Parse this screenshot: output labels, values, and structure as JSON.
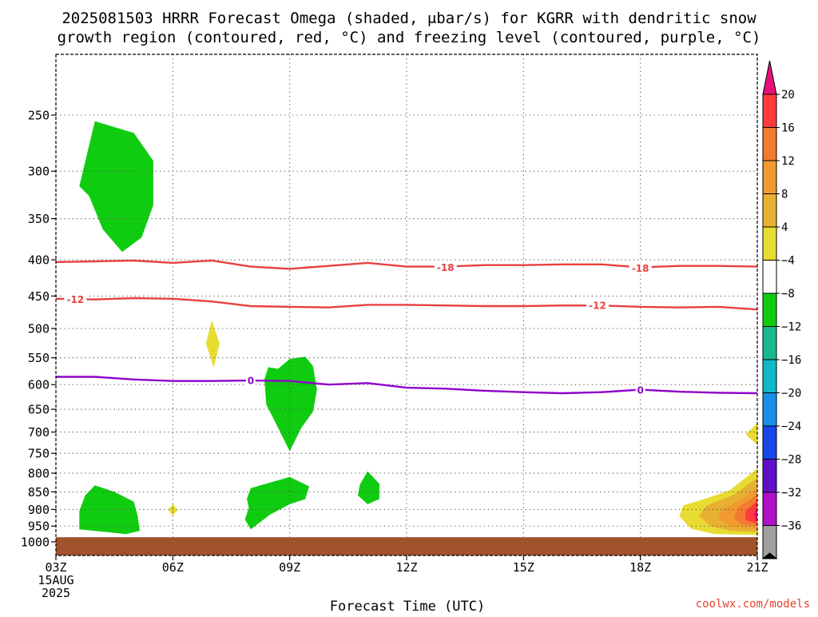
{
  "chart_data": {
    "type": "heatmap",
    "title_line1": "2025081503 HRRR Forecast Omega (shaded, μbar/s) for KGRR with dendritic snow",
    "title_line2": "growth region (contoured, red, °C) and freezing level (contoured, purple, °C)",
    "xlabel": "Forecast Time (UTC)",
    "credit": "coolwx.com/models",
    "x_start_label": [
      "03Z",
      "15AUG",
      "2025"
    ],
    "x_range_hours": [
      3,
      21
    ],
    "x_ticks": [
      {
        "hour": 3,
        "label": "03Z"
      },
      {
        "hour": 6,
        "label": "06Z"
      },
      {
        "hour": 9,
        "label": "09Z"
      },
      {
        "hour": 12,
        "label": "12Z"
      },
      {
        "hour": 15,
        "label": "15Z"
      },
      {
        "hour": 18,
        "label": "18Z"
      },
      {
        "hour": 21,
        "label": "21Z"
      }
    ],
    "y_axis": "pressure (hPa), inverted",
    "y_ticks": [
      250,
      300,
      350,
      400,
      450,
      500,
      550,
      600,
      650,
      700,
      750,
      800,
      850,
      900,
      950,
      1000
    ],
    "grid": true,
    "ground_pressure": 985,
    "colorbar": {
      "labels": [
        "20",
        "16",
        "12",
        "8",
        "4",
        "−4",
        "−8",
        "−12",
        "−16",
        "−20",
        "−24",
        "−28",
        "−32",
        "−36"
      ],
      "colors": [
        "#ff3b3b",
        "#f47a30",
        "#f09a30",
        "#e8b030",
        "#e8dc32",
        "#ffffff",
        "#10cc10",
        "#18b890",
        "#10b8c8",
        "#1890e8",
        "#1848e8",
        "#6010c8",
        "#b010c8",
        "#a0a0a0"
      ],
      "top_color": "#e8107a",
      "bottom_color": "#000000"
    },
    "omega_regions": [
      {
        "id": "green-300",
        "color": "#10cc10",
        "points": [
          [
            4.0,
            255
          ],
          [
            5.0,
            265
          ],
          [
            5.5,
            290
          ],
          [
            5.5,
            335
          ],
          [
            5.2,
            372
          ],
          [
            4.7,
            390
          ],
          [
            4.2,
            362
          ],
          [
            3.85,
            325
          ],
          [
            3.6,
            315
          ]
        ]
      },
      {
        "id": "green-600",
        "color": "#10cc10",
        "points": [
          [
            8.7,
            570
          ],
          [
            9.0,
            552
          ],
          [
            9.4,
            548
          ],
          [
            9.6,
            565
          ],
          [
            9.7,
            610
          ],
          [
            9.6,
            655
          ],
          [
            9.3,
            690
          ],
          [
            9.0,
            745
          ],
          [
            8.7,
            690
          ],
          [
            8.4,
            640
          ],
          [
            8.35,
            590
          ],
          [
            8.45,
            567
          ]
        ]
      },
      {
        "id": "green-870",
        "color": "#10cc10",
        "points": [
          [
            8.0,
            840
          ],
          [
            9.0,
            810
          ],
          [
            9.5,
            835
          ],
          [
            9.4,
            870
          ],
          [
            9.0,
            885
          ],
          [
            8.5,
            915
          ],
          [
            8.0,
            960
          ],
          [
            7.85,
            930
          ],
          [
            7.95,
            895
          ],
          [
            7.9,
            870
          ]
        ]
      },
      {
        "id": "green-850-11z",
        "color": "#10cc10",
        "points": [
          [
            11.0,
            795
          ],
          [
            11.3,
            828
          ],
          [
            11.3,
            870
          ],
          [
            11.0,
            885
          ],
          [
            10.75,
            860
          ],
          [
            10.8,
            830
          ]
        ]
      },
      {
        "id": "green-900-04z",
        "color": "#10cc10",
        "points": [
          [
            4.0,
            832
          ],
          [
            4.5,
            850
          ],
          [
            5.0,
            878
          ],
          [
            5.1,
            920
          ],
          [
            5.15,
            965
          ],
          [
            4.8,
            975
          ],
          [
            3.6,
            960
          ],
          [
            3.6,
            905
          ],
          [
            3.75,
            860
          ]
        ]
      },
      {
        "id": "yellow-520",
        "color": "#e8dc32",
        "points": [
          [
            7.0,
            487
          ],
          [
            7.2,
            525
          ],
          [
            7.05,
            568
          ],
          [
            6.85,
            525
          ]
        ]
      },
      {
        "id": "yellow-900-dot",
        "color": "#e8dc32",
        "points": [
          [
            6.0,
            883
          ],
          [
            6.12,
            902
          ],
          [
            6.0,
            918
          ],
          [
            5.88,
            902
          ]
        ]
      },
      {
        "id": "yellow-700-edge",
        "color": "#e8dc32",
        "points": [
          [
            21.0,
            680
          ],
          [
            21.0,
            730
          ],
          [
            20.7,
            705
          ]
        ]
      },
      {
        "id": "omega-4",
        "color": "#e8dc32",
        "points": [
          [
            21.0,
            788
          ],
          [
            20.3,
            845
          ],
          [
            19.7,
            868
          ],
          [
            19.1,
            888
          ],
          [
            19.0,
            920
          ],
          [
            19.3,
            958
          ],
          [
            19.9,
            975
          ],
          [
            21.0,
            978
          ]
        ]
      },
      {
        "id": "omega-8",
        "color": "#e8b030",
        "points": [
          [
            21.0,
            812
          ],
          [
            20.4,
            858
          ],
          [
            19.7,
            888
          ],
          [
            19.5,
            920
          ],
          [
            19.8,
            950
          ],
          [
            20.3,
            965
          ],
          [
            21.0,
            968
          ]
        ]
      },
      {
        "id": "omega-12",
        "color": "#f09a30",
        "points": [
          [
            21.0,
            840
          ],
          [
            20.6,
            870
          ],
          [
            20.1,
            900
          ],
          [
            20.0,
            925
          ],
          [
            20.3,
            950
          ],
          [
            21.0,
            958
          ]
        ]
      },
      {
        "id": "omega-16",
        "color": "#f47a30",
        "points": [
          [
            21.0,
            858
          ],
          [
            20.5,
            895
          ],
          [
            20.4,
            925
          ],
          [
            20.6,
            945
          ],
          [
            21.0,
            950
          ]
        ]
      },
      {
        "id": "omega-20",
        "color": "#ff3b3b",
        "points": [
          [
            21.0,
            875
          ],
          [
            20.7,
            905
          ],
          [
            20.7,
            932
          ],
          [
            21.0,
            942
          ]
        ]
      },
      {
        "id": "omega-max",
        "color": "#e8107a",
        "points": [
          [
            21.0,
            895
          ],
          [
            20.9,
            915
          ],
          [
            21.0,
            935
          ]
        ]
      }
    ],
    "contours": [
      {
        "name": "-18",
        "color": "#e84040",
        "label": "-18",
        "points": [
          [
            3.0,
            403
          ],
          [
            4.0,
            402
          ],
          [
            5.0,
            401
          ],
          [
            6.0,
            404
          ],
          [
            7.0,
            401
          ],
          [
            8.0,
            409
          ],
          [
            9.0,
            412
          ],
          [
            10.0,
            408
          ],
          [
            11.0,
            404
          ],
          [
            12.0,
            409
          ],
          [
            13.0,
            409
          ],
          [
            14.0,
            407
          ],
          [
            15.0,
            407
          ],
          [
            16.0,
            406
          ],
          [
            17.0,
            406
          ],
          [
            18.0,
            410
          ],
          [
            19.0,
            408
          ],
          [
            20.0,
            408
          ],
          [
            21.0,
            409
          ]
        ],
        "label_at": [
          [
            13.0,
            410
          ],
          [
            18.0,
            411
          ]
        ]
      },
      {
        "name": "-12",
        "color": "#e84040",
        "label": "-12",
        "points": [
          [
            3.0,
            454
          ],
          [
            4.0,
            455
          ],
          [
            5.0,
            453
          ],
          [
            6.0,
            454
          ],
          [
            7.0,
            458
          ],
          [
            8.0,
            465
          ],
          [
            9.0,
            466
          ],
          [
            10.0,
            467
          ],
          [
            11.0,
            463
          ],
          [
            12.0,
            463
          ],
          [
            13.0,
            464
          ],
          [
            14.0,
            465
          ],
          [
            15.0,
            465
          ],
          [
            16.0,
            464
          ],
          [
            17.0,
            464
          ],
          [
            18.0,
            466
          ],
          [
            19.0,
            467
          ],
          [
            20.0,
            466
          ],
          [
            21.0,
            470
          ]
        ],
        "label_at": [
          [
            3.5,
            455
          ],
          [
            16.9,
            464
          ]
        ]
      },
      {
        "name": "0",
        "color": "#9000cc",
        "label": "0",
        "points": [
          [
            3.0,
            585
          ],
          [
            4.0,
            585
          ],
          [
            5.0,
            590
          ],
          [
            6.0,
            593
          ],
          [
            7.0,
            593
          ],
          [
            8.0,
            592
          ],
          [
            9.0,
            593
          ],
          [
            10.0,
            600
          ],
          [
            11.0,
            597
          ],
          [
            12.0,
            606
          ],
          [
            13.0,
            608
          ],
          [
            14.0,
            612
          ],
          [
            15.0,
            615
          ],
          [
            16.0,
            617
          ],
          [
            17.0,
            615
          ],
          [
            18.0,
            610
          ],
          [
            19.0,
            614
          ],
          [
            20.0,
            616
          ],
          [
            21.0,
            617
          ]
        ],
        "label_at": [
          [
            8.0,
            592
          ],
          [
            18.0,
            611
          ]
        ]
      }
    ]
  }
}
